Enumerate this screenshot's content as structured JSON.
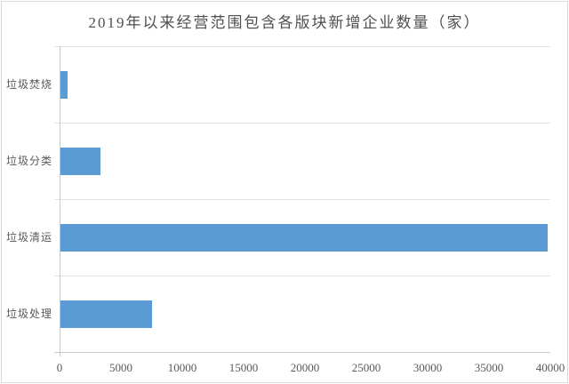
{
  "chart_data": {
    "type": "bar",
    "orientation": "horizontal",
    "title": "2019年以来经营范围包含各版块新增企业数量（家）",
    "categories": [
      "垃圾焚烧",
      "垃圾分类",
      "垃圾清运",
      "垃圾处理"
    ],
    "values": [
      550,
      3250,
      39700,
      7450
    ],
    "xlabel": "",
    "ylabel": "",
    "xlim": [
      0,
      40000
    ],
    "x_ticks": [
      "0",
      "5000",
      "10000",
      "15000",
      "20000",
      "25000",
      "30000",
      "35000",
      "40000"
    ],
    "grid": "horizontal category separators only",
    "legend": "none",
    "bar_color": "#5b9bd5"
  },
  "colors": {
    "bar": "#5b9bd5",
    "title_text": "#4f4f4f",
    "axis_text": "#595959",
    "gridline": "#e3e3e3",
    "axis_line": "#c9c9c9",
    "frame_border": "#d9d9d9",
    "background": "#ffffff"
  }
}
